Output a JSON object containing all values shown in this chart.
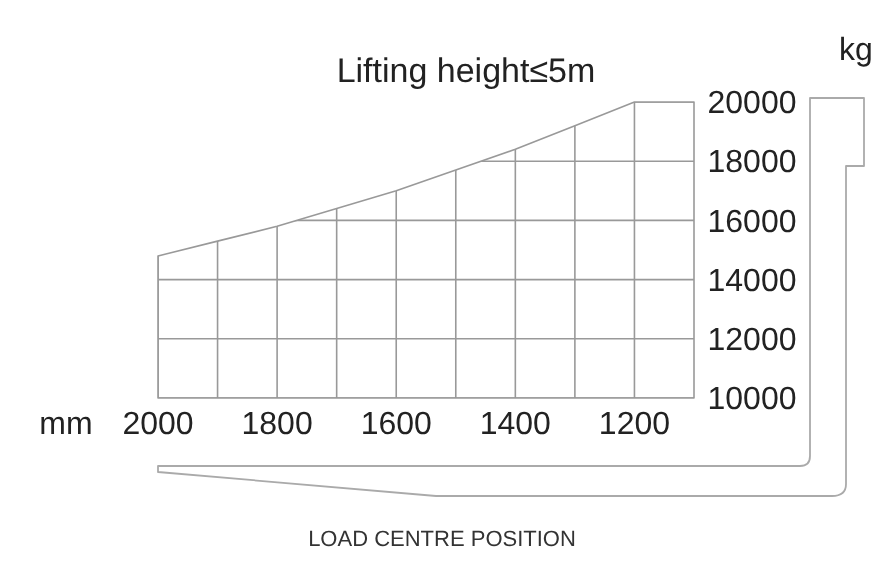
{
  "chart_data": {
    "type": "area",
    "title": "Lifting height≤5m",
    "xlabel": "mm",
    "ylabel": "kg",
    "annotations": [
      "LOAD CENTRE POSITION"
    ],
    "x": [
      2000,
      1900,
      1800,
      1700,
      1600,
      1500,
      1400,
      1300,
      1200,
      1100
    ],
    "series": [
      {
        "color": "#999999",
        "values": [
          14800,
          15300,
          15800,
          16400,
          17000,
          17700,
          18400,
          19200,
          20000,
          20000
        ]
      }
    ],
    "xlim": [
      2000,
      1100
    ],
    "ylim": [
      10000,
      20000
    ],
    "xticks": [
      2000,
      {
        "value": 1900,
        "label": null
      },
      1800,
      {
        "value": 1700,
        "label": null
      },
      1600,
      {
        "value": 1500,
        "label": null
      },
      1400,
      {
        "value": 1300,
        "label": null
      },
      1200
    ],
    "yticks": [
      10000,
      12000,
      14000,
      16000,
      18000,
      20000
    ],
    "grid": true
  }
}
